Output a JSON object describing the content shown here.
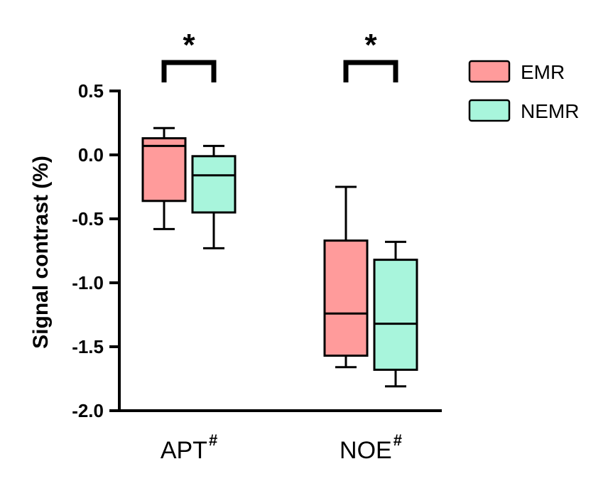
{
  "chart_data": {
    "type": "box",
    "ylabel": "Signal contrast (%)",
    "ylim": [
      -2.0,
      0.5
    ],
    "yticks": [
      0.5,
      0.0,
      -0.5,
      -1.0,
      -1.5,
      -2.0
    ],
    "ytick_labels": [
      "0.5",
      "0.0",
      "-0.5",
      "-1.0",
      "-1.5",
      "-2.0"
    ],
    "categories": [
      {
        "name": "APT",
        "sup": "#"
      },
      {
        "name": "NOE",
        "sup": "#"
      }
    ],
    "series": [
      {
        "name": "EMR",
        "color": "#FF9B9B",
        "boxes": [
          {
            "min": -0.58,
            "q1": -0.36,
            "median": 0.07,
            "q3": 0.13,
            "max": 0.21
          },
          {
            "min": -1.66,
            "q1": -1.57,
            "median": -1.24,
            "q3": -0.67,
            "max": -0.25
          }
        ]
      },
      {
        "name": "NEMR",
        "color": "#A8F5DC",
        "boxes": [
          {
            "min": -0.73,
            "q1": -0.45,
            "median": -0.16,
            "q3": -0.01,
            "max": 0.07
          },
          {
            "min": -1.81,
            "q1": -1.68,
            "median": -1.32,
            "q3": -0.82,
            "max": -0.68
          }
        ]
      }
    ],
    "significance": [
      {
        "category": "APT",
        "label": "*"
      },
      {
        "category": "NOE",
        "label": "*"
      }
    ],
    "legend": {
      "position": "top-right"
    }
  }
}
